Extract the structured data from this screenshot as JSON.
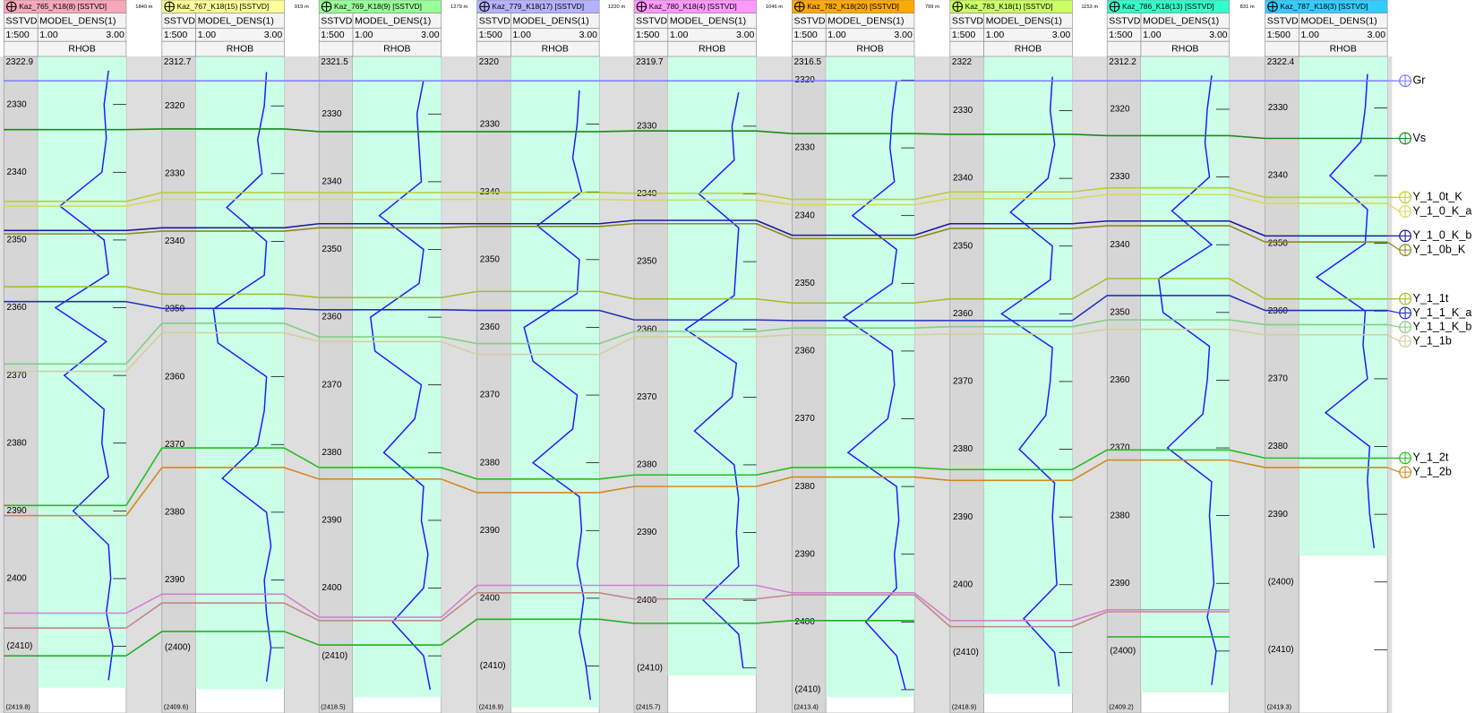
{
  "wells": [
    {
      "name": "Kaz_765_K18(8) [SSTVD]",
      "color": "#f7a8b8",
      "depth_label": "SSTVD",
      "log_name": "MODEL_DENS(1)",
      "scale": "1:500",
      "scale_min": {
        "value": 1,
        "label": "1.00"
      },
      "scale_max": {
        "value": 3,
        "label": "3.00"
      },
      "curve": "RHOB",
      "curve_color": "#1a1aff",
      "top": 2322.9,
      "bottom": {
        "value": 2419.8,
        "label": "(2419.8)"
      },
      "ticks": [
        2330,
        2340,
        2350,
        2360,
        2370,
        2380,
        2390,
        2400,
        {
          "value": 2410,
          "label": "(2410)"
        }
      ],
      "log_depths": [
        2325,
        2330,
        2335,
        2340,
        2345,
        2350,
        2355,
        2360,
        2365,
        2370,
        2375,
        2380,
        2385,
        2390,
        2395,
        2400,
        2405,
        2410,
        2415
      ],
      "log_values": [
        2.6,
        2.5,
        2.55,
        2.45,
        1.5,
        2.5,
        2.6,
        1.4,
        2.55,
        1.6,
        2.5,
        2.45,
        2.6,
        1.8,
        2.6,
        2.65,
        2.55,
        2.7,
        2.6
      ]
    },
    {
      "name": "Kaz_767_K18(15) [SSTVD]",
      "color": "#ffff99",
      "depth_label": "SSTVD",
      "log_name": "MODEL_DENS(1)",
      "scale": "1:500",
      "scale_min": {
        "value": 1,
        "label": "1.00"
      },
      "scale_max": {
        "value": 3,
        "label": "3.00"
      },
      "curve": "RHOB",
      "curve_color": "#1a1aff",
      "top": 2312.7,
      "bottom": {
        "value": 2409.6,
        "label": "(2409.6)"
      },
      "ticks": [
        2320,
        2330,
        2340,
        2350,
        2360,
        2370,
        2380,
        2390,
        {
          "value": 2400,
          "label": "(2400)"
        }
      ],
      "log_depths": [
        2315,
        2320,
        2325,
        2330,
        2335,
        2340,
        2345,
        2350,
        2355,
        2360,
        2365,
        2370,
        2375,
        2380,
        2385,
        2390,
        2395,
        2400,
        2405
      ],
      "log_values": [
        2.6,
        2.55,
        2.4,
        2.5,
        1.7,
        2.6,
        2.55,
        1.4,
        1.5,
        2.6,
        2.55,
        2.4,
        1.6,
        2.6,
        2.7,
        2.55,
        2.6,
        2.7,
        2.6
      ]
    },
    {
      "name": "Kaz_769_K18(9) [SSTVD]",
      "color": "#99ff99",
      "depth_label": "SSTVD",
      "log_name": "MODEL_DENS(1)",
      "scale": "1:500",
      "scale_min": {
        "value": 1,
        "label": "1.00"
      },
      "scale_max": {
        "value": 3,
        "label": "3.00"
      },
      "curve": "RHOB",
      "curve_color": "#1a1aff",
      "top": 2321.5,
      "bottom": {
        "value": 2418.5,
        "label": "(2418.5)"
      },
      "ticks": [
        2330,
        2340,
        2350,
        2360,
        2370,
        2380,
        2390,
        2400,
        {
          "value": 2410,
          "label": "(2410)"
        }
      ],
      "log_depths": [
        2325,
        2330,
        2335,
        2340,
        2345,
        2350,
        2355,
        2360,
        2365,
        2370,
        2375,
        2380,
        2385,
        2390,
        2395,
        2400,
        2405,
        2410,
        2415
      ],
      "log_values": [
        2.6,
        2.45,
        2.5,
        2.55,
        1.6,
        2.6,
        2.5,
        1.4,
        1.5,
        2.55,
        2.4,
        1.7,
        2.6,
        2.55,
        2.7,
        2.6,
        1.9,
        2.6,
        2.75
      ]
    },
    {
      "name": "Kaz_779_K18(17) [SSTVD]",
      "color": "#b3b3ff",
      "depth_label": "SSTVD",
      "log_name": "MODEL_DENS(1)",
      "scale": "1:500",
      "scale_min": {
        "value": 1,
        "label": "1.00"
      },
      "scale_max": {
        "value": 3,
        "label": "3.00"
      },
      "curve": "RHOB",
      "curve_color": "#1a1aff",
      "top": 2320,
      "bottom": {
        "value": 2416.9,
        "label": "(2416.9)"
      },
      "ticks": [
        2330,
        2340,
        2350,
        2360,
        2370,
        2380,
        2390,
        2400,
        {
          "value": 2410,
          "label": "(2410)"
        }
      ],
      "log_depths": [
        2325,
        2330,
        2335,
        2340,
        2345,
        2350,
        2355,
        2360,
        2365,
        2370,
        2375,
        2380,
        2385,
        2390,
        2395,
        2400,
        2405,
        2410,
        2415
      ],
      "log_values": [
        2.55,
        2.5,
        2.4,
        2.6,
        1.6,
        2.55,
        2.5,
        1.3,
        1.5,
        2.5,
        2.4,
        1.5,
        2.55,
        2.6,
        2.5,
        2.65,
        2.55,
        2.7,
        2.8
      ]
    },
    {
      "name": "Kaz_780_K18(4) [SSTVD]",
      "color": "#ff99ff",
      "depth_label": "SSTVD",
      "log_name": "MODEL_DENS(1)",
      "scale": "1:500",
      "scale_min": {
        "value": 1,
        "label": "1.00"
      },
      "scale_max": {
        "value": 3,
        "label": "3.00"
      },
      "curve": "RHOB",
      "curve_color": "#1a1aff",
      "top": 2319.7,
      "bottom": {
        "value": 2415.7,
        "label": "(2415.7)"
      },
      "ticks": [
        2330,
        2340,
        2350,
        2360,
        2370,
        2380,
        2390,
        2400,
        {
          "value": 2410,
          "label": "(2410)"
        }
      ],
      "log_depths": [
        2325,
        2330,
        2335,
        2340,
        2345,
        2350,
        2355,
        2360,
        2365,
        2370,
        2375,
        2380,
        2385,
        2390,
        2395,
        2400,
        2405,
        2410
      ],
      "log_values": [
        2.6,
        2.45,
        2.5,
        1.7,
        2.6,
        2.55,
        2.5,
        1.4,
        2.55,
        2.45,
        1.6,
        2.5,
        2.6,
        2.55,
        2.6,
        1.8,
        2.6,
        2.7
      ]
    },
    {
      "name": "Kaz_782_K18(20) [SSTVD]",
      "color": "#ffaa00",
      "depth_label": "SSTVD",
      "log_name": "MODEL_DENS(1)",
      "scale": "1:500",
      "scale_min": {
        "value": 1,
        "label": "1.00"
      },
      "scale_max": {
        "value": 3,
        "label": "3.00"
      },
      "curve": "RHOB",
      "curve_color": "#1a1aff",
      "top": 2316.5,
      "bottom": {
        "value": 2413.4,
        "label": "(2413.4)"
      },
      "ticks": [
        2320,
        2330,
        2340,
        2350,
        2360,
        2370,
        2380,
        2390,
        2400,
        {
          "value": 2410,
          "label": "(2410)"
        }
      ],
      "log_depths": [
        2320,
        2325,
        2330,
        2335,
        2340,
        2345,
        2350,
        2355,
        2360,
        2365,
        2370,
        2375,
        2380,
        2385,
        2390,
        2395,
        2400,
        2405,
        2410
      ],
      "log_values": [
        2.6,
        2.5,
        2.45,
        2.55,
        1.6,
        2.6,
        2.5,
        1.4,
        2.5,
        2.55,
        2.4,
        1.5,
        2.6,
        2.65,
        2.55,
        2.6,
        1.9,
        2.6,
        2.8
      ]
    },
    {
      "name": "Kaz_783_K18(1) [SSTVD]",
      "color": "#ccff66",
      "depth_label": "SSTVD",
      "log_name": "MODEL_DENS(1)",
      "scale": "1:500",
      "scale_min": {
        "value": 1,
        "label": "1.00"
      },
      "scale_max": {
        "value": 3,
        "label": "3.00"
      },
      "curve": "RHOB",
      "curve_color": "#1a1aff",
      "top": 2322,
      "bottom": {
        "value": 2418.9,
        "label": "(2418.9)"
      },
      "ticks": [
        2330,
        2340,
        2350,
        2360,
        2370,
        2380,
        2390,
        2400,
        {
          "value": 2410,
          "label": "(2410)"
        }
      ],
      "log_depths": [
        2325,
        2330,
        2335,
        2340,
        2345,
        2350,
        2355,
        2360,
        2365,
        2370,
        2375,
        2380,
        2385,
        2390,
        2395,
        2400,
        2405,
        2410,
        2415
      ],
      "log_values": [
        2.55,
        2.5,
        2.6,
        2.45,
        1.6,
        2.55,
        2.5,
        1.4,
        2.55,
        2.5,
        2.4,
        1.8,
        2.6,
        2.55,
        2.6,
        2.65,
        1.9,
        2.6,
        2.7
      ]
    },
    {
      "name": "Kaz_786_K18(13) [SSTVD]",
      "color": "#33ffcc",
      "depth_label": "SSTVD",
      "log_name": "MODEL_DENS(1)",
      "scale": "1:500",
      "scale_min": {
        "value": 1,
        "label": "1.00"
      },
      "scale_max": {
        "value": 3,
        "label": "3.00"
      },
      "curve": "RHOB",
      "curve_color": "#1a1aff",
      "top": 2312.2,
      "bottom": {
        "value": 2409.2,
        "label": "(2409.2)"
      },
      "ticks": [
        2320,
        2330,
        2340,
        2350,
        2360,
        2370,
        2380,
        2390,
        {
          "value": 2400,
          "label": "(2400)"
        }
      ],
      "log_depths": [
        2315,
        2320,
        2325,
        2330,
        2335,
        2340,
        2345,
        2350,
        2355,
        2360,
        2365,
        2370,
        2375,
        2380,
        2385,
        2390,
        2395,
        2400,
        2405
      ],
      "log_values": [
        2.6,
        2.5,
        2.45,
        2.55,
        1.7,
        2.6,
        1.4,
        1.5,
        2.55,
        2.5,
        2.4,
        1.6,
        2.6,
        2.55,
        2.6,
        2.65,
        2.5,
        2.7,
        2.6
      ]
    },
    {
      "name": "Kaz_787_K18(3) [SSTVD]",
      "color": "#33ccff",
      "depth_label": "SSTVD",
      "log_name": "MODEL_DENS(1)",
      "scale": "1:500",
      "scale_min": {
        "value": 1,
        "label": "1.00"
      },
      "scale_max": {
        "value": 3,
        "label": "3.00"
      },
      "curve": "RHOB",
      "curve_color": "#1a1aff",
      "top": 2322.4,
      "bottom": {
        "value": 2419.3,
        "label": "(2419.3)"
      },
      "ticks": [
        2330,
        2340,
        2350,
        2360,
        2370,
        2380,
        2390,
        {
          "value": 2400,
          "label": "(2400)"
        },
        {
          "value": 2410,
          "label": "(2410)"
        }
      ],
      "log_depths": [
        2325,
        2330,
        2335,
        2340,
        2345,
        2350,
        2355,
        2360,
        2365,
        2370,
        2375,
        2380,
        2385,
        2390,
        2395
      ],
      "log_values": [
        2.55,
        2.5,
        2.4,
        1.7,
        2.55,
        2.5,
        1.4,
        2.5,
        2.45,
        2.55,
        1.6,
        2.6,
        2.55,
        2.6,
        2.7
      ]
    }
  ],
  "distances": [
    "1840 m",
    "919 m",
    "1279 m",
    "1220 m",
    "1046 m",
    "799 m",
    "1153 m",
    "831 m"
  ],
  "horizons": [
    {
      "name": "Gr",
      "color": "#7b7bff",
      "depths": [
        2326.5,
        2316.3,
        2325.1,
        2323.6,
        2323.3,
        2320.1,
        2325.6,
        2315.8,
        2326.0
      ]
    },
    {
      "name": "Vs",
      "color": "#1a8a1a",
      "depths": [
        2333.7,
        2323.4,
        2332.6,
        2331.1,
        2330.7,
        2327.9,
        2333.5,
        2323.9,
        2334.5
      ]
    },
    {
      "name": "Y_1_0t_K",
      "color": "#b8d030",
      "depths": [
        2344.3,
        2332.8,
        2341.6,
        2340.1,
        2339.9,
        2337.6,
        2342.0,
        2331.6,
        2343.2
      ]
    },
    {
      "name": "Y_1_0_K_a",
      "color": "#d8d860",
      "depths": [
        2345.0,
        2333.8,
        2342.6,
        2341.1,
        2340.9,
        2338.4,
        2343.0,
        2332.6,
        2344.1
      ]
    },
    {
      "name": "Y_1_0_K_b",
      "color": "#1a1aa0",
      "depths": [
        2348.6,
        2338.0,
        2346.2,
        2344.7,
        2343.9,
        2342.9,
        2346.7,
        2336.5,
        2348.9
      ]
    },
    {
      "name": "Y_1_0b_K",
      "color": "#8a8a20",
      "depths": [
        2349.1,
        2338.5,
        2346.8,
        2345.1,
        2344.4,
        2343.4,
        2347.4,
        2337.2,
        2349.8
      ]
    },
    {
      "name": "Y_1_1t",
      "color": "#a0c030",
      "depths": [
        2356.9,
        2347.8,
        2357.1,
        2354.7,
        2355.5,
        2352.9,
        2357.8,
        2345.0,
        2358.2
      ]
    },
    {
      "name": "Y_1_1_K_a",
      "color": "#2030c0",
      "depths": [
        2359.1,
        2349.9,
        2358.9,
        2357.5,
        2358.6,
        2355.5,
        2361.0,
        2347.5,
        2359.9
      ]
    },
    {
      "name": "Y_1_1_K_b",
      "color": "#80d080",
      "depths": [
        2368.3,
        2352.1,
        2362.9,
        2362.4,
        2360.3,
        2356.6,
        2361.9,
        2351.1,
        2362.0
      ]
    },
    {
      "name": "Y_1_1b",
      "color": "#d0d0a0",
      "depths": [
        2369.4,
        2353.5,
        2363.6,
        2364.0,
        2361.1,
        2357.6,
        2363.0,
        2352.5,
        2363.5
      ]
    },
    {
      "name": "Y_1_2t",
      "color": "#20c020",
      "depths": [
        2389.2,
        2370.5,
        2382.2,
        2382.4,
        2381.5,
        2377.2,
        2383.0,
        2370.3,
        2381.7
      ]
    },
    {
      "name": "Y_1_2b",
      "color": "#d08a20",
      "depths": [
        2390.7,
        2373.4,
        2383.9,
        2384.4,
        2383.2,
        2378.6,
        2384.6,
        2371.8,
        2383.1
      ]
    },
    {
      "color": "#d080d0",
      "depths": [
        2405.1,
        2392.1,
        2404.3,
        2398.1,
        2397.8,
        2395.7,
        2405.3,
        2393.9,
        null
      ]
    },
    {
      "color": "#c08888",
      "depths": [
        2407.3,
        2393.4,
        2404.8,
        2399.2,
        2399.8,
        2396.0,
        2406.2,
        2394.2,
        null
      ]
    },
    {
      "color": "#20b020",
      "depths": [
        2411.4,
        2397.6,
        2408.4,
        2403.1,
        2403.4,
        2399.8,
        null,
        2397.9,
        null
      ]
    }
  ]
}
